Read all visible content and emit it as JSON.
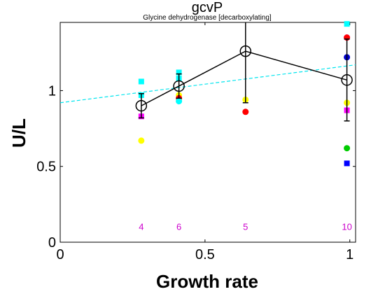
{
  "chart_data": {
    "type": "scatter",
    "title": "gcvP",
    "subtitle": "Glycine dehydrogenase [decarboxylating]",
    "xlabel": "Growth rate",
    "ylabel": "U/L",
    "xlim": [
      0,
      1.02
    ],
    "ylim": [
      0,
      1.45
    ],
    "xticks": [
      0,
      0.5,
      1
    ],
    "yticks": [
      0,
      0.5,
      1
    ],
    "xtick_labels": [
      "0",
      "0.5",
      "1"
    ],
    "ytick_labels": [
      "0",
      "0.5",
      "1"
    ],
    "grid": false,
    "mean_series": {
      "color": "#000000",
      "points": [
        {
          "x": 0.28,
          "y": 0.9,
          "err": 0.08
        },
        {
          "x": 0.41,
          "y": 1.03,
          "err": 0.08
        },
        {
          "x": 0.64,
          "y": 1.26,
          "err": 0.34
        },
        {
          "x": 0.99,
          "y": 1.07,
          "err": 0.27
        }
      ]
    },
    "trend_line": {
      "color": "#00e5ee",
      "x": [
        0,
        1.02
      ],
      "y": [
        0.92,
        1.17
      ]
    },
    "replicates": [
      {
        "x": 0.28,
        "y": 1.06,
        "color": "#00ffff",
        "marker": "square"
      },
      {
        "x": 0.28,
        "y": 0.97,
        "color": "#00ffff",
        "marker": "square"
      },
      {
        "x": 0.28,
        "y": 0.83,
        "color": "#ff00ff",
        "marker": "square"
      },
      {
        "x": 0.28,
        "y": 0.67,
        "color": "#ffff00",
        "marker": "circle"
      },
      {
        "x": 0.41,
        "y": 1.12,
        "color": "#00ffff",
        "marker": "square"
      },
      {
        "x": 0.41,
        "y": 1.08,
        "color": "#00ffff",
        "marker": "square"
      },
      {
        "x": 0.41,
        "y": 0.97,
        "color": "#ffff00",
        "marker": "circle"
      },
      {
        "x": 0.41,
        "y": 0.95,
        "color": "#ff0000",
        "marker": "circle"
      },
      {
        "x": 0.41,
        "y": 0.93,
        "color": "#00ffff",
        "marker": "circle"
      },
      {
        "x": 0.64,
        "y": 0.94,
        "color": "#ffff00",
        "marker": "circle"
      },
      {
        "x": 0.64,
        "y": 0.86,
        "color": "#ff0000",
        "marker": "circle"
      },
      {
        "x": 0.99,
        "y": 1.44,
        "color": "#00ffff",
        "marker": "square"
      },
      {
        "x": 0.99,
        "y": 1.35,
        "color": "#ff00ff",
        "marker": "circle"
      },
      {
        "x": 0.99,
        "y": 1.35,
        "color": "#ff0000",
        "marker": "circle"
      },
      {
        "x": 0.99,
        "y": 1.22,
        "color": "#0000cd",
        "marker": "circle"
      },
      {
        "x": 0.99,
        "y": 0.92,
        "color": "#ffff00",
        "marker": "circle"
      },
      {
        "x": 0.99,
        "y": 0.87,
        "color": "#ff00ff",
        "marker": "square"
      },
      {
        "x": 0.99,
        "y": 0.62,
        "color": "#00cc00",
        "marker": "circle"
      },
      {
        "x": 0.99,
        "y": 0.52,
        "color": "#0000ff",
        "marker": "square"
      }
    ],
    "count_labels": {
      "color": "#cc00cc",
      "y": 0.1,
      "items": [
        {
          "x": 0.28,
          "label": "4"
        },
        {
          "x": 0.41,
          "label": "6"
        },
        {
          "x": 0.64,
          "label": "5"
        },
        {
          "x": 0.99,
          "label": "10"
        }
      ]
    }
  }
}
